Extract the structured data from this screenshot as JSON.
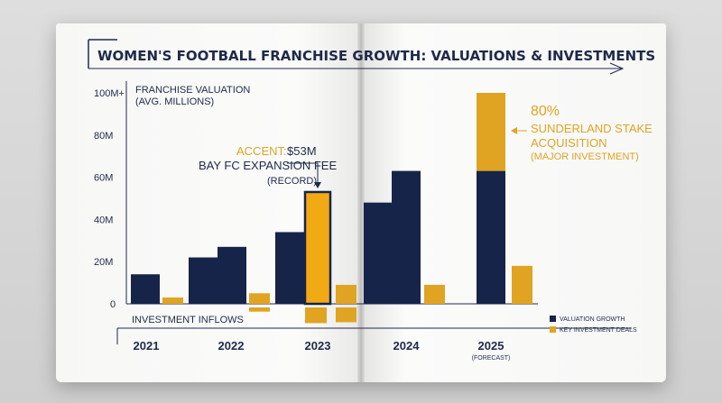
{
  "colors": {
    "navy": "#17244a",
    "gold": "#e0a422",
    "highlight": "#f2aa14"
  },
  "chart_data": {
    "type": "bar",
    "title": "WOMEN'S FOOTBALL FRANCHISE GROWTH: VALUATIONS & INVESTMENTS",
    "ylabel_line1": "FRANCHISE VALUATION",
    "ylabel_line2": "(AVG. MILLIONS)",
    "ylim": [
      0,
      100
    ],
    "yticks": [
      {
        "value": 0,
        "label": "0"
      },
      {
        "value": 20,
        "label": "20M"
      },
      {
        "value": 40,
        "label": "40M"
      },
      {
        "value": 60,
        "label": "60M"
      },
      {
        "value": 80,
        "label": "80M"
      },
      {
        "value": 100,
        "label": "100M+"
      }
    ],
    "grid": false,
    "categories": [
      {
        "label": "2021",
        "sublabel": ""
      },
      {
        "label": "2022",
        "sublabel": ""
      },
      {
        "label": "2023",
        "sublabel": ""
      },
      {
        "label": "2024",
        "sublabel": ""
      },
      {
        "label": "2025",
        "sublabel": "(FORECAST)"
      }
    ],
    "series": [
      {
        "name": "VALUATION GROWTH",
        "color": "#17244a",
        "bars": [
          {
            "year": "2021",
            "value": 14
          },
          {
            "year": "2021",
            "value": 22
          },
          {
            "year": "2022",
            "value": 27
          },
          {
            "year": "2022",
            "value": 34
          },
          {
            "year": "2023",
            "value": 53,
            "highlight": true
          },
          {
            "year": "2024",
            "value": 48
          },
          {
            "year": "2024",
            "value": 63
          },
          {
            "year": "2025",
            "value": 63,
            "stack_top": 37
          }
        ]
      },
      {
        "name": "KEY INVESTMENT DEALS",
        "color": "#e0a422",
        "bars": [
          {
            "year": "2021",
            "value": 3
          },
          {
            "year": "2022",
            "value": 5,
            "below": 2
          },
          {
            "year": "2023",
            "value": 9,
            "below": 7
          },
          {
            "year": "2024",
            "value": 9
          },
          {
            "year": "2025",
            "value": 18
          }
        ]
      }
    ],
    "inflows_label": "INVESTMENT INFLOWS",
    "legend": [
      {
        "label": "VALUATION GROWTH",
        "color": "#17244a"
      },
      {
        "label": "KEY INVESTMENT DEALS",
        "color": "#e0a422"
      }
    ],
    "legend_position": "bottom-right",
    "annotations": {
      "bayfc": {
        "accent": "ACCENT:",
        "amount": "$53M",
        "line2": "BAY FC EXPANSION FEE",
        "line3": "(RECORD)"
      },
      "sunderland": {
        "pct": "80%",
        "line2": "SUNDERLAND STAKE",
        "line3": "ACQUISITION",
        "line4": "(MAJOR INVESTMENT)"
      }
    }
  }
}
